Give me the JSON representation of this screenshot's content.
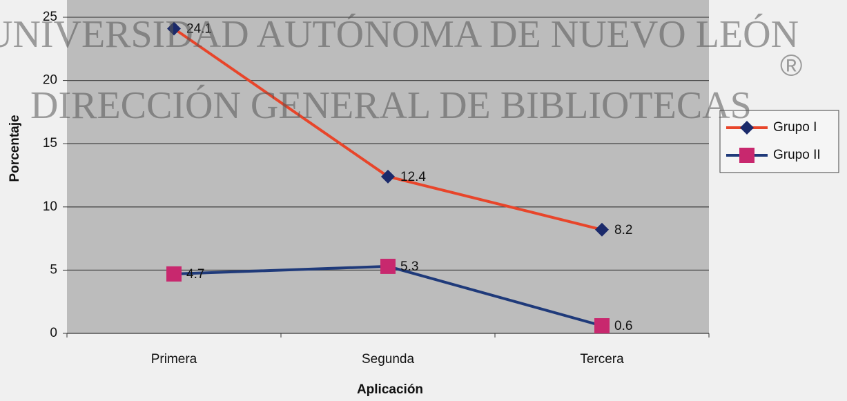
{
  "chart_data": {
    "type": "line",
    "xlabel": "Aplicación",
    "ylabel": "Porcentaje",
    "categories": [
      "Primera",
      "Segunda",
      "Tercera"
    ],
    "series": [
      {
        "name": "Grupo I",
        "color": "#e8452a",
        "marker_color": "#1b2a6b",
        "marker": "diamond",
        "values": [
          24.1,
          12.4,
          8.2
        ]
      },
      {
        "name": "Grupo II",
        "color": "#1f3a7a",
        "marker_color": "#c8286e",
        "marker": "square",
        "values": [
          4.7,
          5.3,
          0.6
        ]
      }
    ],
    "ylim": [
      0,
      25
    ],
    "yticks": [
      0,
      5,
      10,
      15,
      20,
      25
    ],
    "grid": true,
    "legend": "right",
    "annotations": [
      "UNIVERSIDAD AUTÓNOMA DE NUEVO LEÓN",
      "DIRECCIÓN GENERAL DE BIBLIOTECAS",
      "®"
    ]
  }
}
